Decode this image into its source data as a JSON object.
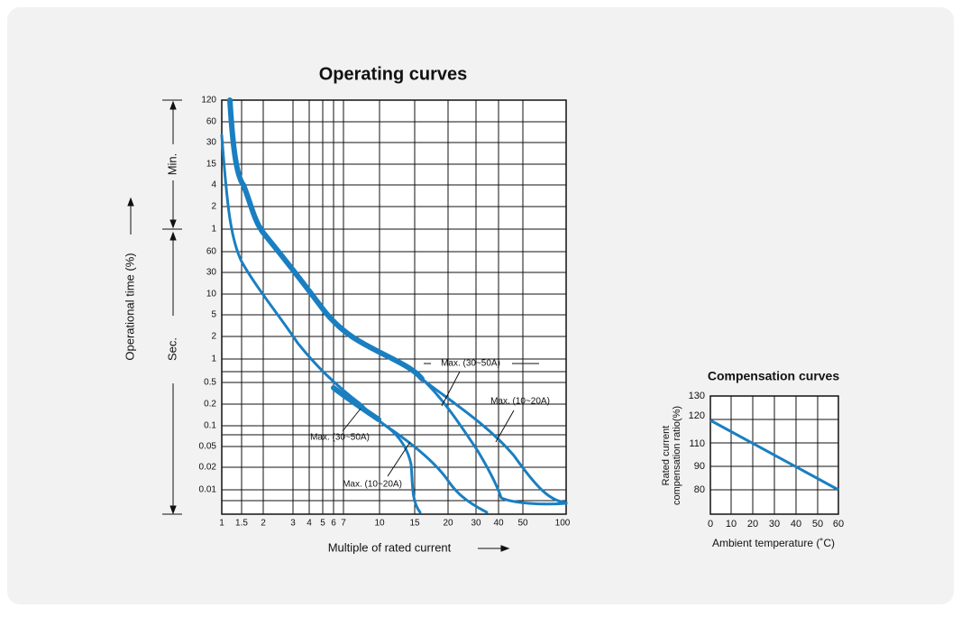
{
  "operating": {
    "title": "Operating curves",
    "y_axis_label": "Operational time (%)",
    "min_label": "Min.",
    "sec_label": "Sec.",
    "x_axis_label": "Multiple of rated current",
    "y_labels": [
      "120",
      "60",
      "30",
      "15",
      "4",
      "2",
      "1",
      "60",
      "30",
      "10",
      "5",
      "2",
      "1",
      "0.5",
      "0.2",
      "0.1",
      "0.05",
      "0.02",
      "0.01"
    ],
    "x_labels": [
      "1",
      "1.5",
      "2",
      "3",
      "4",
      "5",
      "6",
      "7",
      "10",
      "15",
      "20",
      "30",
      "40",
      "50",
      "100"
    ],
    "annotations": [
      "Max. (30~50A)",
      "Max. (10~20A)",
      "Max. (30~50A)",
      "Max. (10~20A)"
    ]
  },
  "compensation": {
    "title": "Compensation curves",
    "y_axis_label": [
      "Rated current",
      "compensation ratio(%)"
    ],
    "x_axis_label": "Ambient temperature (˚C)",
    "y_labels": [
      "130",
      "120",
      "110",
      "90",
      "80"
    ],
    "x_labels": [
      "0",
      "10",
      "20",
      "30",
      "40",
      "50",
      "60"
    ]
  }
}
